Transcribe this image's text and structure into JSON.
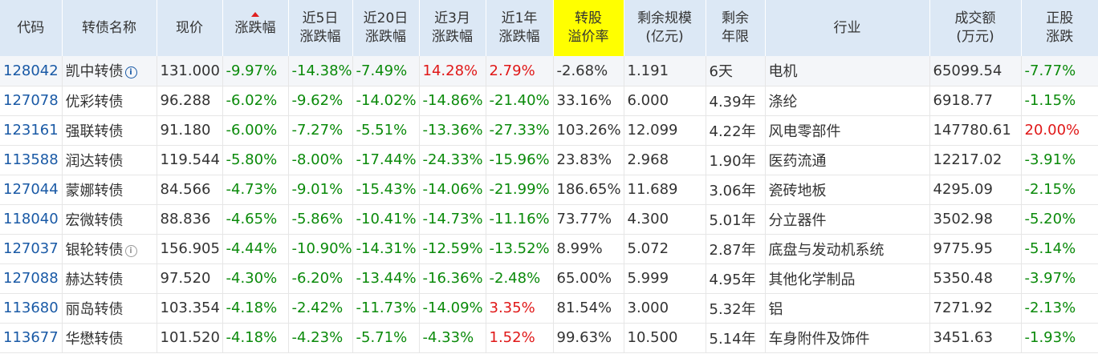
{
  "table": {
    "columns": [
      {
        "key": "code",
        "label": "代码"
      },
      {
        "key": "name",
        "label": "转债名称"
      },
      {
        "key": "price",
        "label": "现价"
      },
      {
        "key": "chg",
        "label": "涨跌幅"
      },
      {
        "key": "chg5d_l1",
        "label": "近5日"
      },
      {
        "key": "chg5d_l2",
        "label": "涨跌幅"
      },
      {
        "key": "chg20d_l1",
        "label": "近20日"
      },
      {
        "key": "chg20d_l2",
        "label": "涨跌幅"
      },
      {
        "key": "chg3m_l1",
        "label": "近3月"
      },
      {
        "key": "chg3m_l2",
        "label": "涨跌幅"
      },
      {
        "key": "chg1y_l1",
        "label": "近1年"
      },
      {
        "key": "chg1y_l2",
        "label": "涨跌幅"
      },
      {
        "key": "prem_l1",
        "label": "转股"
      },
      {
        "key": "prem_l2",
        "label": "溢价率"
      },
      {
        "key": "scale_l1",
        "label": "剩余规模"
      },
      {
        "key": "scale_l2",
        "label": "(亿元)"
      },
      {
        "key": "years_l1",
        "label": "剩余"
      },
      {
        "key": "years_l2",
        "label": "年限"
      },
      {
        "key": "industry",
        "label": "行业"
      },
      {
        "key": "vol_l1",
        "label": "成交额"
      },
      {
        "key": "vol_l2",
        "label": "(万元)"
      },
      {
        "key": "stock_l1",
        "label": "正股"
      },
      {
        "key": "stock_l2",
        "label": "涨跌"
      }
    ],
    "rows": [
      {
        "code": "128042",
        "name": "凯中转债",
        "price": "131.000",
        "chg": "-9.97%",
        "chg5d": "-14.38%",
        "chg20d": "-7.49%",
        "chg3m": "14.28%",
        "chg1y": "2.79%",
        "premium": "-2.68%",
        "scale": "1.191",
        "years": "6天",
        "industry": "电机",
        "volume": "65099.54",
        "stock_chg": "-7.77%"
      },
      {
        "code": "127078",
        "name": "优彩转债",
        "price": "96.288",
        "chg": "-6.02%",
        "chg5d": "-9.62%",
        "chg20d": "-14.02%",
        "chg3m": "-14.86%",
        "chg1y": "-21.40%",
        "premium": "33.16%",
        "scale": "6.000",
        "years": "4.39年",
        "industry": "涤纶",
        "volume": "6918.77",
        "stock_chg": "-1.15%"
      },
      {
        "code": "123161",
        "name": "强联转债",
        "price": "91.180",
        "chg": "-6.00%",
        "chg5d": "-7.27%",
        "chg20d": "-5.51%",
        "chg3m": "-13.36%",
        "chg1y": "-27.33%",
        "premium": "103.26%",
        "scale": "12.099",
        "years": "4.22年",
        "industry": "风电零部件",
        "volume": "147780.61",
        "stock_chg": "20.00%"
      },
      {
        "code": "113588",
        "name": "润达转债",
        "price": "119.544",
        "chg": "-5.80%",
        "chg5d": "-8.00%",
        "chg20d": "-17.44%",
        "chg3m": "-24.33%",
        "chg1y": "-15.96%",
        "premium": "23.83%",
        "scale": "2.968",
        "years": "1.90年",
        "industry": "医药流通",
        "volume": "12217.02",
        "stock_chg": "-3.91%"
      },
      {
        "code": "127044",
        "name": "蒙娜转债",
        "price": "84.566",
        "chg": "-4.73%",
        "chg5d": "-9.01%",
        "chg20d": "-15.43%",
        "chg3m": "-14.06%",
        "chg1y": "-21.99%",
        "premium": "186.65%",
        "scale": "11.689",
        "years": "3.06年",
        "industry": "瓷砖地板",
        "volume": "4295.09",
        "stock_chg": "-2.15%"
      },
      {
        "code": "118040",
        "name": "宏微转债",
        "price": "88.836",
        "chg": "-4.65%",
        "chg5d": "-5.86%",
        "chg20d": "-10.41%",
        "chg3m": "-14.73%",
        "chg1y": "-11.16%",
        "premium": "73.77%",
        "scale": "4.300",
        "years": "5.01年",
        "industry": "分立器件",
        "volume": "3502.98",
        "stock_chg": "-5.20%"
      },
      {
        "code": "127037",
        "name": "银轮转债",
        "price": "156.905",
        "chg": "-4.44%",
        "chg5d": "-10.90%",
        "chg20d": "-14.31%",
        "chg3m": "-12.59%",
        "chg1y": "-13.52%",
        "premium": "8.99%",
        "scale": "5.072",
        "years": "2.87年",
        "industry": "底盘与发动机系统",
        "volume": "9775.95",
        "stock_chg": "-5.14%"
      },
      {
        "code": "127088",
        "name": "赫达转债",
        "price": "97.520",
        "chg": "-4.30%",
        "chg5d": "-6.20%",
        "chg20d": "-13.44%",
        "chg3m": "-16.36%",
        "chg1y": "-2.48%",
        "premium": "65.00%",
        "scale": "5.999",
        "years": "4.95年",
        "industry": "其他化学制品",
        "volume": "5350.48",
        "stock_chg": "-3.97%"
      },
      {
        "code": "113680",
        "name": "丽岛转债",
        "price": "103.354",
        "chg": "-4.18%",
        "chg5d": "-2.42%",
        "chg20d": "-11.73%",
        "chg3m": "-14.09%",
        "chg1y": "3.35%",
        "premium": "81.54%",
        "scale": "3.000",
        "years": "5.32年",
        "industry": "铝",
        "volume": "7271.92",
        "stock_chg": "-2.13%"
      },
      {
        "code": "113677",
        "name": "华懋转债",
        "price": "101.520",
        "chg": "-4.18%",
        "chg5d": "-4.23%",
        "chg20d": "-5.71%",
        "chg3m": "-4.33%",
        "chg1y": "1.52%",
        "premium": "99.63%",
        "scale": "10.500",
        "years": "5.14年",
        "industry": "车身附件及饰件",
        "volume": "3451.63",
        "stock_chg": "-1.93%"
      }
    ],
    "info_icon": "info-icon",
    "sort_icon": "sort-up-icon",
    "colors": {
      "header_bg": "#dce8f5",
      "highlight": "#ffff00",
      "down": "#0a8a0a",
      "up": "#e01818",
      "code": "#1a5aa6"
    }
  }
}
